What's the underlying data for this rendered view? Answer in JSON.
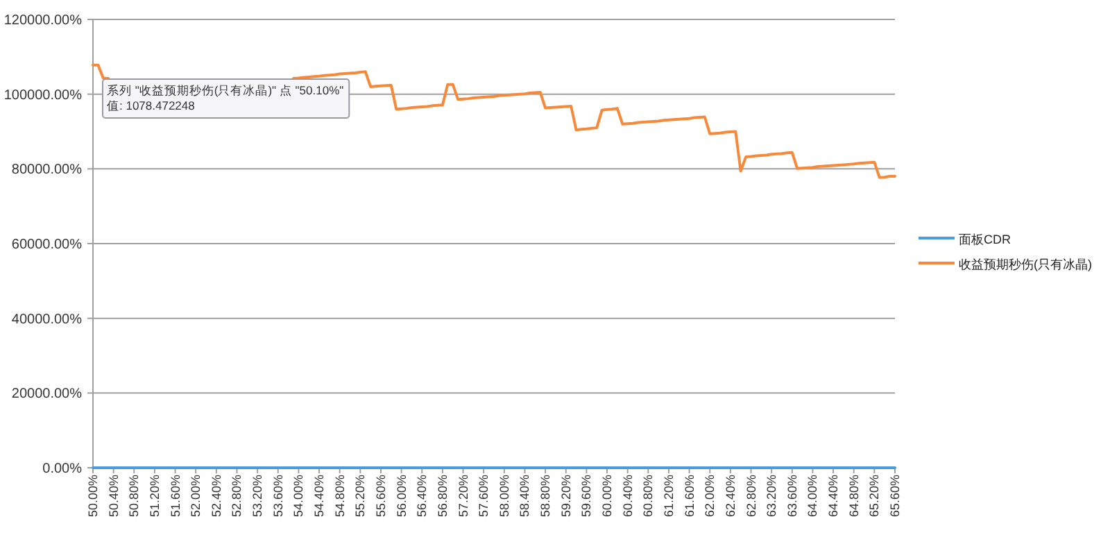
{
  "chart_data": {
    "type": "line",
    "categories": [
      "50.00%",
      null,
      null,
      null,
      "50.40%",
      null,
      null,
      null,
      "50.80%",
      null,
      null,
      null,
      "51.20%",
      null,
      null,
      null,
      "51.60%",
      null,
      null,
      null,
      "52.00%",
      null,
      null,
      null,
      "52.40%",
      null,
      null,
      null,
      "52.80%",
      null,
      null,
      null,
      "53.20%",
      null,
      null,
      null,
      "53.60%",
      null,
      null,
      null,
      "54.00%",
      null,
      null,
      null,
      "54.40%",
      null,
      null,
      null,
      "54.80%",
      null,
      null,
      null,
      "55.20%",
      null,
      null,
      null,
      "55.60%",
      null,
      null,
      null,
      "56.00%",
      null,
      null,
      null,
      "56.40%",
      null,
      null,
      null,
      "56.80%",
      null,
      null,
      null,
      "57.20%",
      null,
      null,
      null,
      "57.60%",
      null,
      null,
      null,
      "58.00%",
      null,
      null,
      null,
      "58.40%",
      null,
      null,
      null,
      "58.80%",
      null,
      null,
      null,
      "59.20%",
      null,
      null,
      null,
      "59.60%",
      null,
      null,
      null,
      "60.00%",
      null,
      null,
      null,
      "60.40%",
      null,
      null,
      null,
      "60.80%",
      null,
      null,
      null,
      "61.20%",
      null,
      null,
      null,
      "61.60%",
      null,
      null,
      null,
      "62.00%",
      null,
      null,
      null,
      "62.40%",
      null,
      null,
      null,
      "62.80%",
      null,
      null,
      null,
      "63.20%",
      null,
      null,
      null,
      "63.60%",
      null,
      null,
      null,
      "64.00%",
      null,
      null,
      null,
      "64.40%",
      null,
      null,
      null,
      "64.80%",
      null,
      null,
      null,
      "65.20%",
      null,
      null,
      null,
      "65.60%"
    ],
    "series": [
      {
        "name": "面板CDR",
        "color": "#4a9be0",
        "values": [
          0,
          0,
          0,
          0,
          0,
          0,
          0,
          0,
          0,
          0,
          0,
          0,
          0,
          0,
          0,
          0,
          0,
          0,
          0,
          0,
          0,
          0,
          0,
          0,
          0,
          0,
          0,
          0,
          0,
          0,
          0,
          0,
          0,
          0,
          0,
          0,
          0,
          0,
          0,
          0,
          0,
          0,
          0,
          0,
          0,
          0,
          0,
          0,
          0,
          0,
          0,
          0,
          0,
          0,
          0,
          0,
          0,
          0,
          0,
          0,
          0,
          0,
          0,
          0,
          0,
          0,
          0,
          0,
          0,
          0,
          0,
          0,
          0,
          0,
          0,
          0,
          0,
          0,
          0,
          0,
          0,
          0,
          0,
          0,
          0,
          0,
          0,
          0,
          0,
          0,
          0,
          0,
          0,
          0,
          0,
          0,
          0,
          0,
          0,
          0,
          0,
          0,
          0,
          0,
          0,
          0,
          0,
          0,
          0,
          0,
          0,
          0,
          0,
          0,
          0,
          0,
          0,
          0,
          0,
          0,
          0,
          0,
          0,
          0,
          0,
          0,
          0,
          0,
          0,
          0,
          0,
          0,
          0,
          0,
          0,
          0,
          0,
          0,
          0,
          0,
          0,
          0,
          0,
          0,
          0,
          0,
          0,
          0,
          0,
          0,
          0,
          0,
          0,
          0,
          0,
          0,
          0
        ]
      },
      {
        "name": "收益预期秒伤(只有冰晶)",
        "color": "#f7893b",
        "values": [
          107800,
          107800,
          104300,
          104200,
          null,
          null,
          null,
          null,
          null,
          null,
          null,
          null,
          null,
          null,
          null,
          null,
          null,
          null,
          null,
          null,
          null,
          null,
          null,
          null,
          null,
          null,
          null,
          null,
          null,
          null,
          null,
          null,
          null,
          null,
          null,
          null,
          null,
          null,
          null,
          104200,
          104300,
          104500,
          104600,
          104700,
          104800,
          105000,
          105100,
          105200,
          105400,
          105500,
          105600,
          105700,
          105900,
          106000,
          102000,
          102100,
          102200,
          102300,
          102400,
          96000,
          96100,
          96200,
          96400,
          96500,
          96600,
          96700,
          96900,
          97000,
          97100,
          102600,
          102600,
          98600,
          98700,
          98800,
          99000,
          99100,
          99200,
          99300,
          99400,
          99600,
          99700,
          99800,
          99900,
          100000,
          100100,
          100300,
          100400,
          100500,
          96300,
          96400,
          96500,
          96600,
          96700,
          96800,
          90400,
          90600,
          90700,
          90900,
          91000,
          95700,
          95900,
          96000,
          96200,
          92000,
          92100,
          92200,
          92400,
          92500,
          92600,
          92700,
          92800,
          93000,
          93100,
          93200,
          93300,
          93400,
          93500,
          93700,
          93800,
          93900,
          89400,
          89500,
          89600,
          89800,
          89900,
          90000,
          79400,
          83200,
          83300,
          83500,
          83600,
          83700,
          83900,
          84000,
          84100,
          84300,
          84400,
          80100,
          80200,
          80300,
          80400,
          80600,
          80700,
          80800,
          80900,
          81000,
          81100,
          81200,
          81300,
          81500,
          81600,
          81700,
          81800,
          77700,
          77800,
          78000,
          78000
        ]
      }
    ],
    "ylim": [
      0,
      120000
    ],
    "yticks": [
      {
        "value": 0,
        "label": "0.00%"
      },
      {
        "value": 20000,
        "label": "20000.00%"
      },
      {
        "value": 40000,
        "label": "40000.00%"
      },
      {
        "value": 60000,
        "label": "60000.00%"
      },
      {
        "value": 80000,
        "label": "80000.00%"
      },
      {
        "value": 100000,
        "label": "100000.00%"
      },
      {
        "value": 120000,
        "label": "120000.00%"
      }
    ],
    "grid": "y",
    "legend": "right",
    "annotations": [
      "系列 \"收益预期秒伤(只有冰晶)\" 点 \"50.10%\"",
      "值: 1078.472248"
    ]
  }
}
